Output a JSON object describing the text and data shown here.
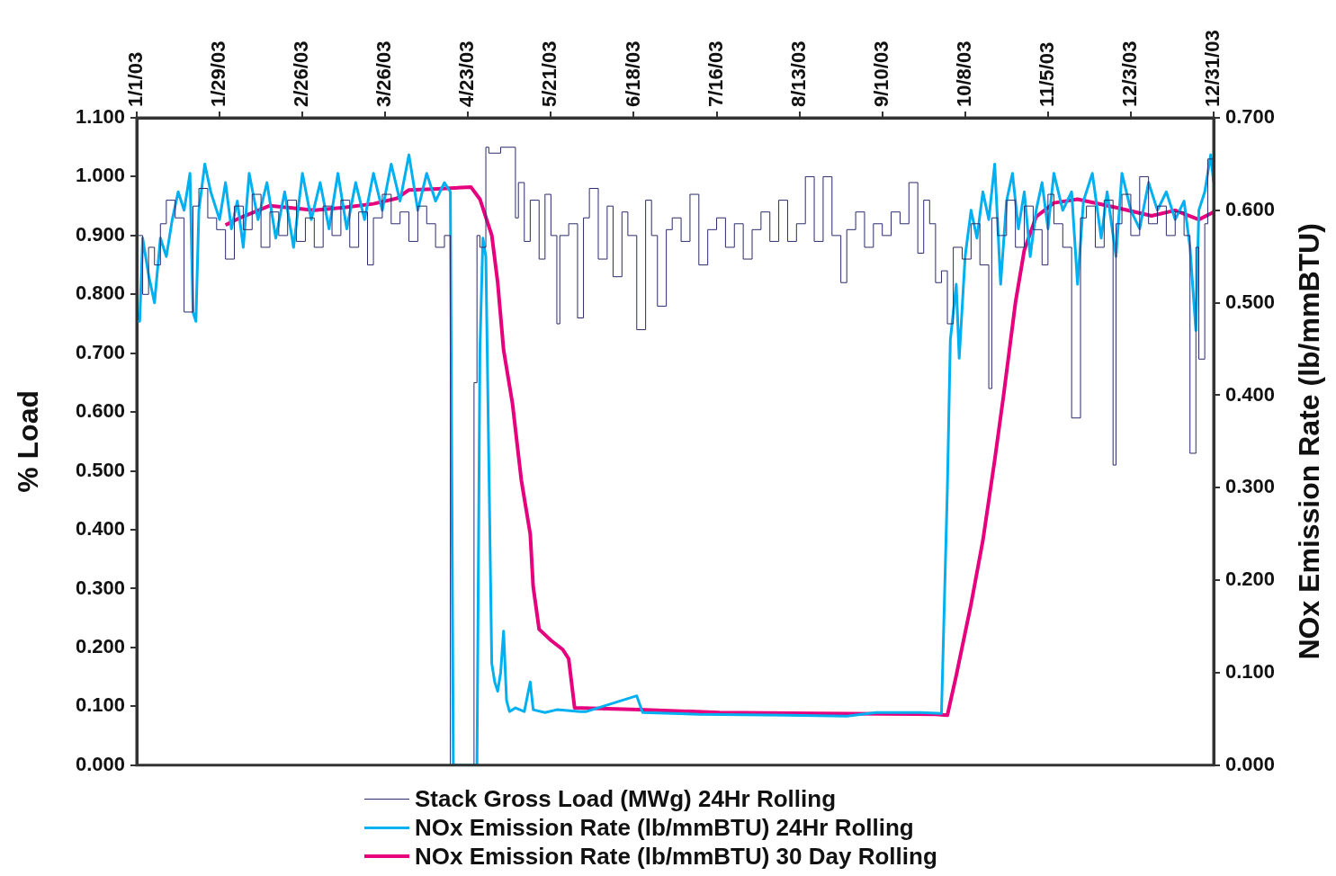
{
  "chart_data": {
    "type": "line",
    "ylabel": "% Load",
    "y2label": "NOx Emission Rate (lb/mmBTU)",
    "xlim": [
      "2003-01-01",
      "2003-12-31"
    ],
    "xticks": [
      {
        "value": "2003-01-01",
        "label": "1/1/03"
      },
      {
        "value": "2003-01-29",
        "label": "1/29/03"
      },
      {
        "value": "2003-02-26",
        "label": "2/26/03"
      },
      {
        "value": "2003-03-26",
        "label": "3/26/03"
      },
      {
        "value": "2003-04-23",
        "label": "4/23/03"
      },
      {
        "value": "2003-05-21",
        "label": "5/21/03"
      },
      {
        "value": "2003-06-18",
        "label": "6/18/03"
      },
      {
        "value": "2003-07-16",
        "label": "7/16/03"
      },
      {
        "value": "2003-08-13",
        "label": "8/13/03"
      },
      {
        "value": "2003-09-10",
        "label": "9/10/03"
      },
      {
        "value": "2003-10-08",
        "label": "10/8/03"
      },
      {
        "value": "2003-11-05",
        "label": "11/5/03"
      },
      {
        "value": "2003-12-03",
        "label": "12/3/03"
      },
      {
        "value": "2003-12-31",
        "label": "12/31/03"
      }
    ],
    "ylim": [
      0,
      1.1
    ],
    "yticks": [
      {
        "value": 0,
        "label": "0.000"
      },
      {
        "value": 0.1,
        "label": "0.100"
      },
      {
        "value": 0.2,
        "label": "0.200"
      },
      {
        "value": 0.3,
        "label": "0.300"
      },
      {
        "value": 0.4,
        "label": "0.400"
      },
      {
        "value": 0.5,
        "label": "0.500"
      },
      {
        "value": 0.6,
        "label": "0.600"
      },
      {
        "value": 0.7,
        "label": "0.700"
      },
      {
        "value": 0.8,
        "label": "0.800"
      },
      {
        "value": 0.9,
        "label": "0.900"
      },
      {
        "value": 1.0,
        "label": "1.000"
      },
      {
        "value": 1.1,
        "label": "1.100"
      }
    ],
    "y2lim": [
      0,
      0.7
    ],
    "y2ticks": [
      {
        "value": 0,
        "label": "0.000"
      },
      {
        "value": 0.1,
        "label": "0.100"
      },
      {
        "value": 0.2,
        "label": "0.200"
      },
      {
        "value": 0.3,
        "label": "0.300"
      },
      {
        "value": 0.4,
        "label": "0.400"
      },
      {
        "value": 0.5,
        "label": "0.500"
      },
      {
        "value": 0.6,
        "label": "0.600"
      },
      {
        "value": 0.7,
        "label": "0.700"
      }
    ],
    "grid": false,
    "legend": "bottom",
    "marker": "none",
    "series": [
      {
        "name": "Stack Gross Load (MWg) 24Hr Rolling",
        "type": "step",
        "color": "#2b2b6b",
        "x": [
          "2003-01-01",
          "2003-01-03",
          "2003-01-05",
          "2003-01-07",
          "2003-01-09",
          "2003-01-11",
          "2003-01-14",
          "2003-01-17",
          "2003-01-20",
          "2003-01-22",
          "2003-01-25",
          "2003-01-28",
          "2003-01-31",
          "2003-02-03",
          "2003-02-06",
          "2003-02-09",
          "2003-02-12",
          "2003-02-15",
          "2003-02-18",
          "2003-02-21",
          "2003-02-24",
          "2003-02-27",
          "2003-03-02",
          "2003-03-05",
          "2003-03-08",
          "2003-03-11",
          "2003-03-14",
          "2003-03-17",
          "2003-03-20",
          "2003-03-22",
          "2003-03-25",
          "2003-03-28",
          "2003-03-31",
          "2003-04-03",
          "2003-04-06",
          "2003-04-09",
          "2003-04-12",
          "2003-04-15",
          "2003-04-17",
          "2003-04-18",
          "2003-04-25",
          "2003-04-26",
          "2003-04-27",
          "2003-04-29",
          "2003-04-30",
          "2003-05-04",
          "2003-05-09",
          "2003-05-10",
          "2003-05-12",
          "2003-05-14",
          "2003-05-17",
          "2003-05-19",
          "2003-05-21",
          "2003-05-23",
          "2003-05-24",
          "2003-05-27",
          "2003-05-30",
          "2003-06-01",
          "2003-06-03",
          "2003-06-06",
          "2003-06-09",
          "2003-06-11",
          "2003-06-14",
          "2003-06-16",
          "2003-06-19",
          "2003-06-22",
          "2003-06-24",
          "2003-06-26",
          "2003-06-29",
          "2003-07-01",
          "2003-07-04",
          "2003-07-07",
          "2003-07-10",
          "2003-07-13",
          "2003-07-16",
          "2003-07-19",
          "2003-07-22",
          "2003-07-25",
          "2003-07-28",
          "2003-07-31",
          "2003-08-03",
          "2003-08-06",
          "2003-08-09",
          "2003-08-12",
          "2003-08-15",
          "2003-08-18",
          "2003-08-21",
          "2003-08-24",
          "2003-08-27",
          "2003-08-29",
          "2003-09-01",
          "2003-09-04",
          "2003-09-07",
          "2003-09-10",
          "2003-09-13",
          "2003-09-16",
          "2003-09-19",
          "2003-09-22",
          "2003-09-24",
          "2003-09-26",
          "2003-09-28",
          "2003-09-30",
          "2003-10-02",
          "2003-10-04",
          "2003-10-07",
          "2003-10-10",
          "2003-10-13",
          "2003-10-16",
          "2003-10-17",
          "2003-10-19",
          "2003-10-22",
          "2003-10-25",
          "2003-10-28",
          "2003-10-31",
          "2003-11-03",
          "2003-11-05",
          "2003-11-07",
          "2003-11-10",
          "2003-11-13",
          "2003-11-16",
          "2003-11-18",
          "2003-11-21",
          "2003-11-24",
          "2003-11-27",
          "2003-11-28",
          "2003-11-30",
          "2003-12-03",
          "2003-12-06",
          "2003-12-09",
          "2003-12-12",
          "2003-12-15",
          "2003-12-18",
          "2003-12-21",
          "2003-12-23",
          "2003-12-25",
          "2003-12-26",
          "2003-12-28",
          "2003-12-29",
          "2003-12-31"
        ],
        "values": [
          0.75,
          0.9,
          0.8,
          0.88,
          0.85,
          0.92,
          0.96,
          0.93,
          0.77,
          0.95,
          0.98,
          0.93,
          0.91,
          0.86,
          0.95,
          0.91,
          0.97,
          0.88,
          0.94,
          0.9,
          0.96,
          0.89,
          0.93,
          0.88,
          0.95,
          0.9,
          0.96,
          0.88,
          0.94,
          0.85,
          0.93,
          0.97,
          0.92,
          0.94,
          0.89,
          0.95,
          0.92,
          0.88,
          0.9,
          0,
          0,
          0.65,
          0.9,
          0.88,
          1.05,
          1.04,
          1.05,
          0.93,
          0.99,
          0.89,
          0.96,
          0.86,
          0.97,
          0.9,
          0.75,
          0.9,
          0.92,
          0.76,
          0.93,
          0.98,
          0.86,
          0.95,
          0.83,
          0.94,
          0.9,
          0.74,
          0.96,
          0.9,
          0.78,
          0.91,
          0.93,
          0.89,
          0.97,
          0.85,
          0.91,
          0.93,
          0.88,
          0.92,
          0.86,
          0.91,
          0.94,
          0.89,
          0.96,
          0.89,
          0.92,
          1.0,
          0.89,
          1.0,
          0.9,
          0.82,
          0.91,
          0.94,
          0.88,
          0.92,
          0.9,
          0.94,
          0.92,
          0.99,
          0.87,
          0.96,
          0.92,
          0.82,
          0.84,
          0.75,
          0.88,
          0.86,
          0.92,
          0.85,
          0.64,
          0.93,
          0.9,
          0.96,
          0.88,
          0.95,
          0.91,
          0.85,
          0.97,
          0.92,
          0.88,
          0.59,
          0.93,
          0.95,
          0.88,
          0.96,
          0.51,
          0.92,
          0.97,
          0.9,
          1.0,
          0.92,
          0.95,
          0.9,
          0.94,
          0.9,
          0.53,
          0.88,
          0.69,
          0.92,
          1.03
        ]
      },
      {
        "name": "NOx Emission Rate (lb/mmBTU) 24Hr Rolling",
        "type": "line",
        "axis": "y2",
        "color": "#00b0f0",
        "x": [
          "2003-01-01",
          "2003-01-02",
          "2003-01-03",
          "2003-01-05",
          "2003-01-07",
          "2003-01-09",
          "2003-01-11",
          "2003-01-13",
          "2003-01-15",
          "2003-01-17",
          "2003-01-19",
          "2003-01-20",
          "2003-01-21",
          "2003-01-22",
          "2003-01-24",
          "2003-01-26",
          "2003-01-29",
          "2003-01-31",
          "2003-02-02",
          "2003-02-04",
          "2003-02-06",
          "2003-02-08",
          "2003-02-11",
          "2003-02-14",
          "2003-02-17",
          "2003-02-20",
          "2003-02-23",
          "2003-02-26",
          "2003-03-01",
          "2003-03-04",
          "2003-03-07",
          "2003-03-10",
          "2003-03-13",
          "2003-03-16",
          "2003-03-19",
          "2003-03-22",
          "2003-03-25",
          "2003-03-28",
          "2003-03-31",
          "2003-04-03",
          "2003-04-06",
          "2003-04-09",
          "2003-04-12",
          "2003-04-15",
          "2003-04-17",
          "2003-04-18",
          "2003-04-26",
          "2003-04-27",
          "2003-04-28",
          "2003-04-29",
          "2003-05-01",
          "2003-05-02",
          "2003-05-03",
          "2003-05-04",
          "2003-05-05",
          "2003-05-06",
          "2003-05-07",
          "2003-05-09",
          "2003-05-12",
          "2003-05-14",
          "2003-05-15",
          "2003-05-19",
          "2003-05-23",
          "2003-05-31",
          "2003-06-02",
          "2003-06-19",
          "2003-06-21",
          "2003-07-10",
          "2003-08-09",
          "2003-08-29",
          "2003-09-08",
          "2003-09-23",
          "2003-09-30",
          "2003-10-02",
          "2003-10-03",
          "2003-10-05",
          "2003-10-06",
          "2003-10-08",
          "2003-10-10",
          "2003-10-12",
          "2003-10-14",
          "2003-10-16",
          "2003-10-18",
          "2003-10-20",
          "2003-10-22",
          "2003-10-24",
          "2003-10-26",
          "2003-10-28",
          "2003-10-30",
          "2003-11-01",
          "2003-11-03",
          "2003-11-05",
          "2003-11-07",
          "2003-11-10",
          "2003-11-13",
          "2003-11-15",
          "2003-11-17",
          "2003-11-20",
          "2003-11-23",
          "2003-11-25",
          "2003-11-28",
          "2003-11-30",
          "2003-12-03",
          "2003-12-06",
          "2003-12-09",
          "2003-12-12",
          "2003-12-15",
          "2003-12-18",
          "2003-12-21",
          "2003-12-23",
          "2003-12-25",
          "2003-12-26",
          "2003-12-28",
          "2003-12-30",
          "2003-12-31"
        ],
        "values": [
          0.48,
          0.48,
          0.57,
          0.53,
          0.5,
          0.57,
          0.55,
          0.59,
          0.62,
          0.6,
          0.64,
          0.49,
          0.48,
          0.6,
          0.65,
          0.62,
          0.59,
          0.63,
          0.58,
          0.61,
          0.56,
          0.64,
          0.59,
          0.63,
          0.57,
          0.62,
          0.56,
          0.64,
          0.59,
          0.63,
          0.58,
          0.64,
          0.58,
          0.63,
          0.59,
          0.64,
          0.6,
          0.65,
          0.61,
          0.66,
          0.6,
          0.64,
          0.61,
          0.63,
          0.62,
          0,
          0,
          0.45,
          0.57,
          0.55,
          0.11,
          0.09,
          0.08,
          0.1,
          0.145,
          0.07,
          0.058,
          0.062,
          0.058,
          0.09,
          0.06,
          0.057,
          0.06,
          0.058,
          0.058,
          0.075,
          0.057,
          0.055,
          0.054,
          0.053,
          0.057,
          0.057,
          0.056,
          0.3,
          0.46,
          0.52,
          0.44,
          0.55,
          0.6,
          0.57,
          0.62,
          0.59,
          0.65,
          0.52,
          0.61,
          0.64,
          0.58,
          0.62,
          0.55,
          0.6,
          0.63,
          0.58,
          0.64,
          0.6,
          0.62,
          0.52,
          0.61,
          0.64,
          0.57,
          0.62,
          0.55,
          0.64,
          0.6,
          0.58,
          0.63,
          0.6,
          0.62,
          0.59,
          0.61,
          0.56,
          0.47,
          0.6,
          0.62,
          0.66,
          0.63
        ]
      },
      {
        "name": "NOx Emission Rate (lb/mmBTU) 30 Day Rolling",
        "type": "line",
        "axis": "y2",
        "color": "#e6007e",
        "x": [
          "2003-01-31",
          "2003-02-05",
          "2003-02-15",
          "2003-03-02",
          "2003-03-12",
          "2003-03-22",
          "2003-03-30",
          "2003-04-03",
          "2003-04-11",
          "2003-04-24",
          "2003-04-27",
          "2003-05-01",
          "2003-05-03",
          "2003-05-05",
          "2003-05-08",
          "2003-05-11",
          "2003-05-14",
          "2003-05-15",
          "2003-05-17",
          "2003-05-21",
          "2003-05-25",
          "2003-05-27",
          "2003-05-29",
          "2003-06-20",
          "2003-07-17",
          "2003-08-19",
          "2003-09-28",
          "2003-10-02",
          "2003-10-05",
          "2003-10-10",
          "2003-10-14",
          "2003-10-18",
          "2003-10-21",
          "2003-10-25",
          "2003-10-28",
          "2003-11-01",
          "2003-11-07",
          "2003-11-15",
          "2003-11-28",
          "2003-12-10",
          "2003-12-18",
          "2003-12-26",
          "2003-12-31"
        ],
        "values": [
          0.584,
          0.592,
          0.605,
          0.6,
          0.603,
          0.607,
          0.613,
          0.622,
          0.623,
          0.625,
          0.612,
          0.573,
          0.522,
          0.449,
          0.391,
          0.308,
          0.25,
          0.193,
          0.147,
          0.135,
          0.125,
          0.115,
          0.062,
          0.06,
          0.057,
          0.056,
          0.055,
          0.054,
          0.097,
          0.174,
          0.243,
          0.33,
          0.4,
          0.5,
          0.557,
          0.593,
          0.608,
          0.612,
          0.603,
          0.594,
          0.6,
          0.59,
          0.598
        ]
      }
    ]
  }
}
